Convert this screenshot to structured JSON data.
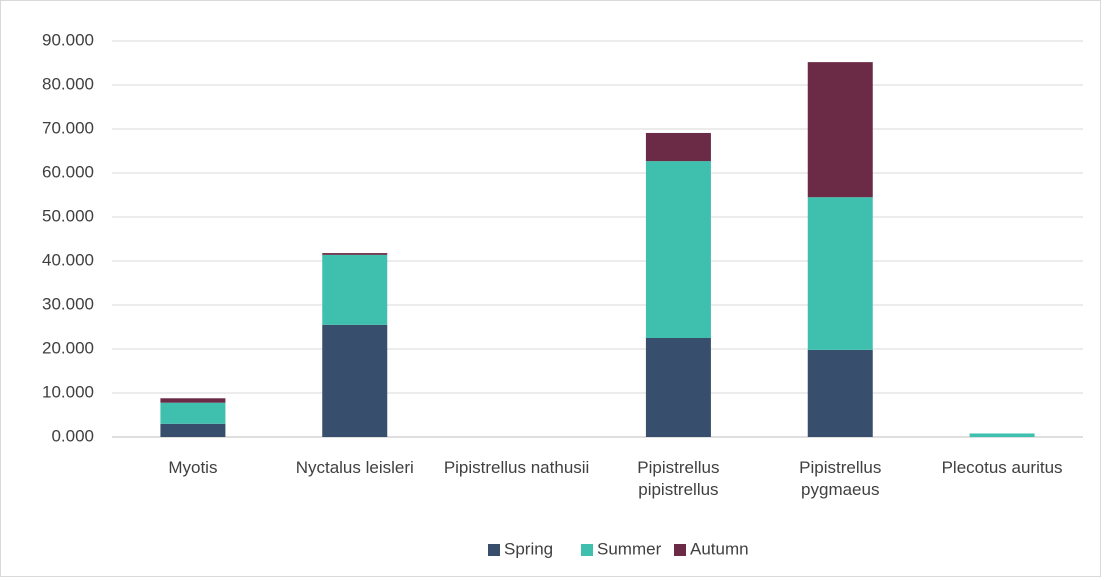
{
  "chart_data": {
    "type": "stacked_bar",
    "categories": [
      "Myotis",
      "Nyctalus leisleri",
      "Pipistrellus nathusii",
      "Pipistrellus pipistrellus",
      "Pipistrellus pygmaeus",
      "Plecotus auritus"
    ],
    "series": [
      {
        "name": "Spring",
        "color": "#374e6d",
        "values": [
          3.0,
          25.5,
          0,
          22.5,
          19.8,
          0
        ]
      },
      {
        "name": "Summer",
        "color": "#3fbfae",
        "values": [
          4.8,
          15.9,
          0,
          40.2,
          34.7,
          0.8
        ]
      },
      {
        "name": "Autumn",
        "color": "#6b2a45",
        "values": [
          1.0,
          0.4,
          0,
          6.4,
          30.7,
          0
        ]
      }
    ],
    "ylim": [
      0,
      90
    ],
    "yticks": [
      {
        "value": 0,
        "label": "0.000"
      },
      {
        "value": 10,
        "label": "10.000"
      },
      {
        "value": 20,
        "label": "20.000"
      },
      {
        "value": 30,
        "label": "30.000"
      },
      {
        "value": 40,
        "label": "40.000"
      },
      {
        "value": 50,
        "label": "50.000"
      },
      {
        "value": 60,
        "label": "60.000"
      },
      {
        "value": 70,
        "label": "70.000"
      },
      {
        "value": 80,
        "label": "80.000"
      },
      {
        "value": 90,
        "label": "90.000"
      }
    ],
    "grid": true,
    "legend": "bottom"
  }
}
